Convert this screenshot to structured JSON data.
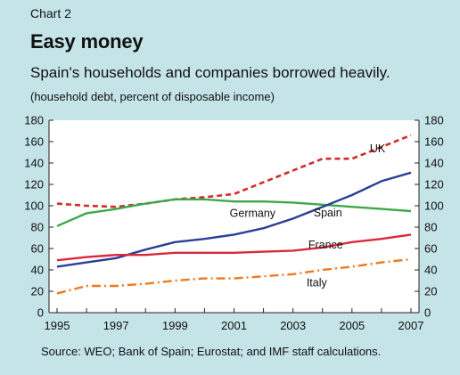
{
  "header": {
    "chart_label": "Chart 2",
    "title": "Easy money",
    "subtitle": "Spain's households and companies borrowed heavily.",
    "unit_note": "(household debt, percent of disposable income)"
  },
  "footer": {
    "source": "Source: WEO; Bank of Spain; Eurostat; and IMF staff calculations."
  },
  "colors": {
    "page_background": "#c5e4e8",
    "plot_background": "#ffffff",
    "UK": "#d42a2a",
    "Spain": "#2b3f96",
    "Germany": "#3da84b",
    "France": "#d82a3a",
    "Italy": "#f0781e"
  },
  "chart_data": {
    "type": "line",
    "title": "Easy money",
    "subtitle": "Spain's households and companies borrowed heavily.",
    "ylabel": "(household debt, percent of disposable income)",
    "xlabel": "",
    "xlim": [
      1995,
      2007
    ],
    "ylim": [
      0,
      180
    ],
    "x_ticks": [
      1995,
      1997,
      1999,
      2001,
      2003,
      2005,
      2007
    ],
    "y_ticks": [
      0,
      20,
      40,
      60,
      80,
      100,
      120,
      140,
      160,
      180
    ],
    "y_axis_both_sides": true,
    "grid": false,
    "legend": "inline labels",
    "x": [
      1995,
      1996,
      1997,
      1998,
      1999,
      2000,
      2001,
      2002,
      2003,
      2004,
      2005,
      2006,
      2007
    ],
    "series": [
      {
        "name": "UK",
        "style": "dashed",
        "values": [
          102,
          100,
          99,
          102,
          106,
          108,
          111,
          122,
          133,
          144,
          144,
          155,
          166
        ]
      },
      {
        "name": "Germany",
        "style": "solid",
        "values": [
          81,
          93,
          97,
          102,
          106,
          106,
          104,
          104,
          103,
          101,
          99,
          97,
          95
        ]
      },
      {
        "name": "Spain",
        "style": "solid",
        "values": [
          43,
          47,
          51,
          59,
          66,
          69,
          73,
          79,
          88,
          99,
          110,
          123,
          131
        ]
      },
      {
        "name": "France",
        "style": "solid",
        "values": [
          49,
          52,
          54,
          54,
          56,
          56,
          56,
          57,
          58,
          61,
          66,
          69,
          73
        ]
      },
      {
        "name": "Italy",
        "style": "dashdot",
        "values": [
          18,
          25,
          25,
          27,
          30,
          32,
          32,
          34,
          36,
          40,
          43,
          47,
          50
        ]
      }
    ]
  }
}
